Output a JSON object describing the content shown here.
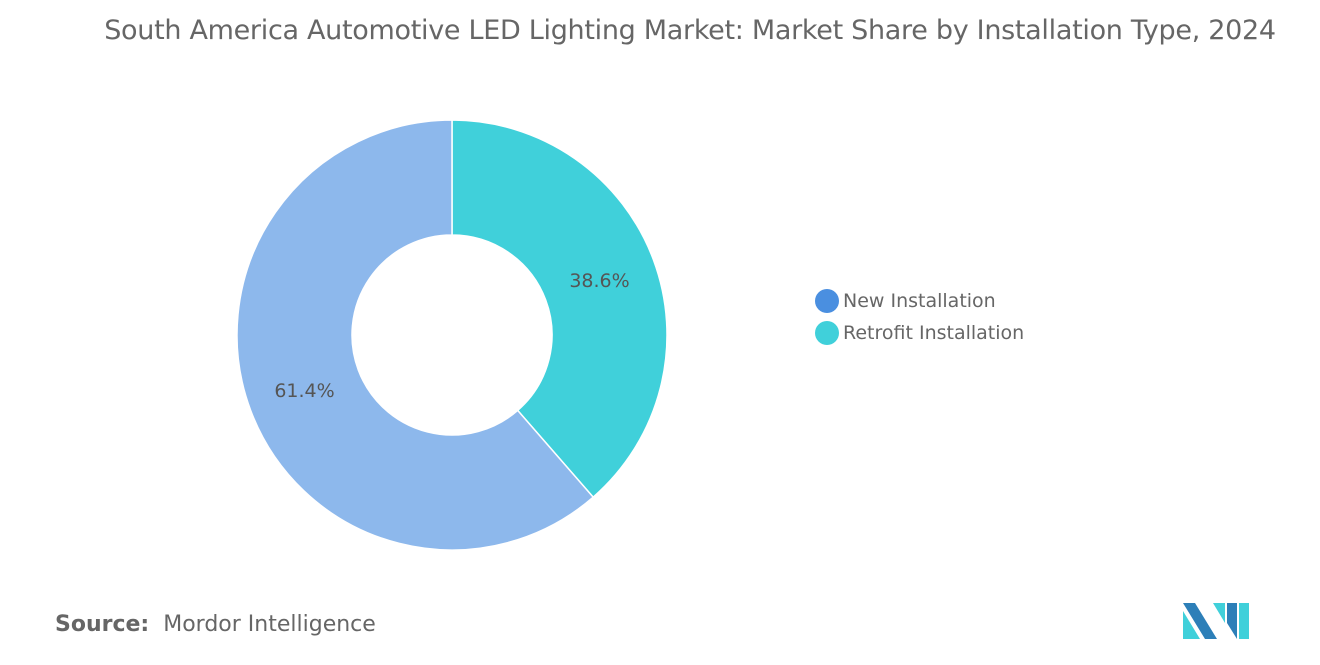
{
  "chart_data": {
    "type": "pie",
    "variant": "donut",
    "title": "South America Automotive LED Lighting Market: Market Share by Installation Type, 2024",
    "categories": [
      "New Installation",
      "Retrofit Installation"
    ],
    "values": [
      61.4,
      38.6
    ],
    "data_labels": [
      "61.4%",
      "38.6%"
    ],
    "colors": [
      "#8db8ec",
      "#40d0da"
    ],
    "legend_colors": [
      "#4a8fe0",
      "#40d0da"
    ],
    "legend_position": "right"
  },
  "source": {
    "label": "Source:",
    "value": "Mordor Intelligence"
  },
  "logo_colors": [
    "#2d7fb8",
    "#40d0da"
  ]
}
